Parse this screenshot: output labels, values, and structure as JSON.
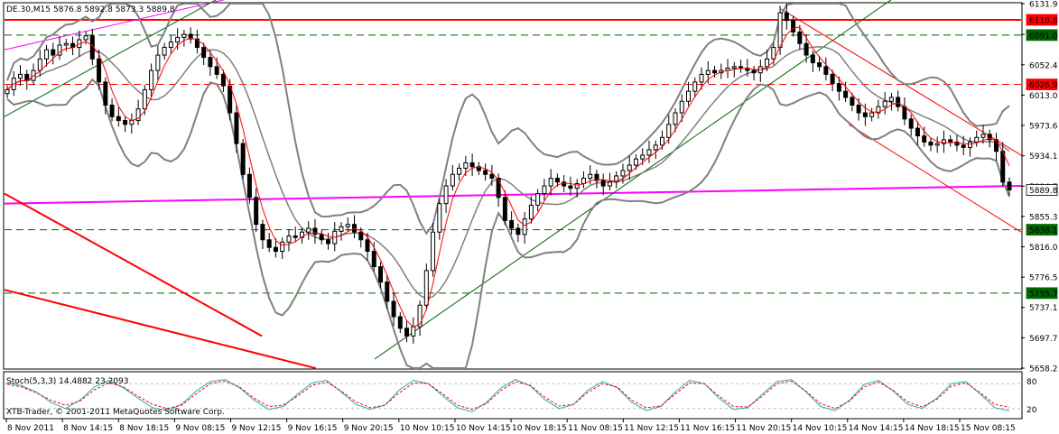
{
  "header": {
    "symbol": "DE.30,M15",
    "ohlc": "5876.8 5892.8 5873.3 5889.8"
  },
  "stoch": {
    "label": "Stoch(5,3,3) 14.4882 23.2093",
    "levels": [
      "80",
      "20"
    ]
  },
  "copyright": "XTB-Trader, © 2001-2011 MetaQuotes Software Corp.",
  "colors": {
    "background": "#ffffff",
    "candle": "#000000",
    "bollinger": "#808080",
    "ma": "#ff0000",
    "resistance_red": "#ff0000",
    "support_green": "#006400",
    "magenta_line": "#ff00ff",
    "price_tag_red": "#ff0000",
    "price_tag_green": "#006400",
    "stoch_main": "#20b2aa",
    "stoch_signal": "#ff0000"
  },
  "chart_data": {
    "type": "candlestick",
    "y_axis_ticks": [
      "6131.9",
      "6091.9",
      "6052.4",
      "6013.0",
      "5973.6",
      "5934.1",
      "5894.7",
      "5855.3",
      "5816.0",
      "5776.5",
      "5737.1",
      "5697.7",
      "5658.2"
    ],
    "ylim": [
      5658.2,
      6131.9
    ],
    "x_axis_ticks": [
      "8 Nov 2011",
      "8 Nov 14:15",
      "8 Nov 18:15",
      "9 Nov 08:15",
      "9 Nov 12:15",
      "9 Nov 16:15",
      "9 Nov 20:15",
      "10 Nov 10:15",
      "10 Nov 14:15",
      "10 Nov 18:15",
      "11 Nov 08:15",
      "11 Nov 12:15",
      "11 Nov 16:15",
      "11 Nov 20:15",
      "14 Nov 10:15",
      "14 Nov 14:15",
      "14 Nov 18:15",
      "15 Nov 08:15"
    ],
    "horizontal_levels": [
      {
        "value": 6110.8,
        "label": "6110.8",
        "style": "solid",
        "color": "red"
      },
      {
        "value": 6091.0,
        "label": "6091.0",
        "style": "dashed",
        "color": "green"
      },
      {
        "value": 6026.9,
        "label": "6026.9",
        "style": "dashed",
        "color": "red"
      },
      {
        "value": 5889.8,
        "label": "5889.8",
        "style": "current",
        "color": "white"
      },
      {
        "value": 5838.1,
        "label": "5838.1",
        "style": "dashed",
        "color": "green"
      },
      {
        "value": 5755.7,
        "label": "5755.7",
        "style": "dashed",
        "color": "green"
      }
    ],
    "close_series": [
      6020,
      6035,
      6040,
      6032,
      6045,
      6060,
      6072,
      6065,
      6078,
      6080,
      6075,
      6085,
      6090,
      6060,
      6030,
      6000,
      5985,
      5980,
      5975,
      5980,
      5995,
      6020,
      6045,
      6065,
      6075,
      6082,
      6088,
      6092,
      6086,
      6075,
      6062,
      6050,
      6040,
      6025,
      5990,
      5950,
      5910,
      5880,
      5845,
      5825,
      5815,
      5810,
      5822,
      5830,
      5828,
      5835,
      5840,
      5832,
      5825,
      5820,
      5836,
      5842,
      5845,
      5835,
      5825,
      5810,
      5790,
      5770,
      5745,
      5725,
      5710,
      5700,
      5712,
      5740,
      5785,
      5835,
      5872,
      5895,
      5910,
      5918,
      5925,
      5920,
      5915,
      5910,
      5905,
      5880,
      5850,
      5840,
      5832,
      5852,
      5870,
      5885,
      5895,
      5905,
      5900,
      5895,
      5892,
      5898,
      5905,
      5910,
      5902,
      5895,
      5900,
      5908,
      5915,
      5922,
      5930,
      5935,
      5942,
      5948,
      5958,
      5975,
      5990,
      6005,
      6018,
      6030,
      6040,
      6045,
      6042,
      6045,
      6048,
      6050,
      6048,
      6045,
      6042,
      6050,
      6060,
      6075,
      6120,
      6110,
      6095,
      6080,
      6065,
      6055,
      6050,
      6040,
      6028,
      6018,
      6010,
      6000,
      5990,
      5985,
      5990,
      5998,
      6005,
      6010,
      5998,
      5982,
      5970,
      5960,
      5952,
      5948,
      5950,
      5955,
      5952,
      5948,
      5945,
      5952,
      5958,
      5962,
      5955,
      5940,
      5900,
      5889.8
    ],
    "stochastic": {
      "main": [
        82,
        75,
        60,
        35,
        20,
        40,
        72,
        88,
        70,
        45,
        22,
        15,
        30,
        62,
        85,
        90,
        70,
        40,
        18,
        25,
        55,
        82,
        88,
        60,
        30,
        18,
        28,
        65,
        88,
        80,
        50,
        22,
        12,
        35,
        70,
        90,
        75,
        42,
        20,
        30,
        65,
        85,
        70,
        35,
        15,
        25,
        60,
        88,
        80,
        45,
        18,
        22,
        55,
        85,
        90,
        60,
        25,
        15,
        40,
        78,
        88,
        62,
        30,
        20,
        45,
        80,
        85,
        55,
        22,
        14.5
      ],
      "signal": [
        78,
        72,
        58,
        40,
        28,
        38,
        65,
        82,
        72,
        50,
        30,
        20,
        28,
        55,
        80,
        86,
        72,
        45,
        25,
        28,
        50,
        76,
        84,
        62,
        36,
        22,
        28,
        58,
        82,
        80,
        55,
        28,
        18,
        32,
        64,
        85,
        76,
        48,
        26,
        30,
        60,
        80,
        72,
        40,
        22,
        26,
        55,
        82,
        80,
        50,
        25,
        24,
        50,
        80,
        86,
        62,
        32,
        20,
        38,
        72,
        84,
        64,
        36,
        24,
        42,
        74,
        82,
        58,
        30,
        23.2
      ]
    },
    "ylabel": "",
    "xlabel": ""
  }
}
